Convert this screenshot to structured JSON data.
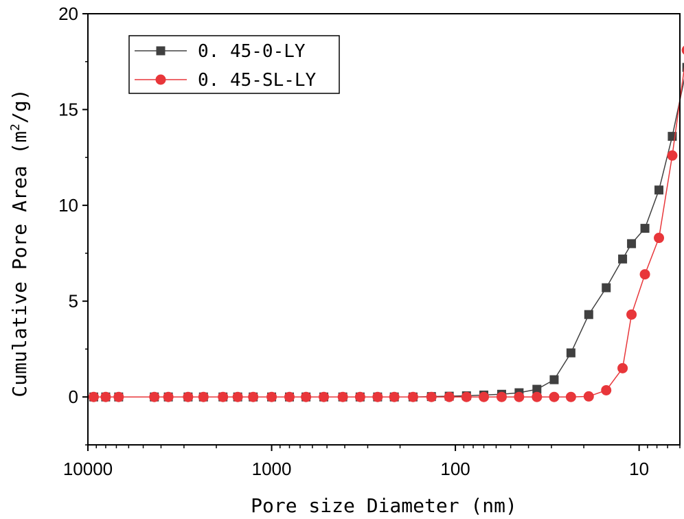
{
  "chart_data": {
    "type": "scatter",
    "title": "",
    "xlabel": "Pore size Diameter (nm)",
    "ylabel_prefix": "Cumulative Pore Area (m",
    "ylabel_sup": "2",
    "ylabel_suffix": "/g)",
    "x_scale": "log",
    "x_reversed": true,
    "xlim": [
      10000,
      6
    ],
    "ylim": [
      -2.5,
      20
    ],
    "x_ticks": [
      {
        "value": 10000,
        "label": "10000"
      },
      {
        "value": 1000,
        "label": "1000"
      },
      {
        "value": 100,
        "label": "100"
      },
      {
        "value": 10,
        "label": "10"
      }
    ],
    "y_ticks": [
      {
        "value": 0,
        "label": "0"
      },
      {
        "value": 5,
        "label": "5"
      },
      {
        "value": 10,
        "label": "10"
      },
      {
        "value": 15,
        "label": "15"
      },
      {
        "value": 20,
        "label": "20"
      }
    ],
    "legend_position": "top-left",
    "series": [
      {
        "name": "0. 45-0-LY",
        "marker": "square",
        "color": "#404040",
        "line_color": "#404040",
        "x": [
          9300,
          8000,
          6800,
          4350,
          3650,
          2850,
          2350,
          1840,
          1530,
          1260,
          1000,
          800,
          650,
          520,
          410,
          330,
          265,
          215,
          170,
          135,
          108,
          87,
          70,
          56,
          45,
          36,
          29,
          23.5,
          18.8,
          15.1,
          12.3,
          11.0,
          9.3,
          7.8,
          6.6,
          5.5
        ],
        "y": [
          0,
          0,
          0,
          0,
          0,
          0,
          0,
          0,
          0,
          0,
          0,
          0,
          0,
          0,
          0,
          0,
          0,
          0,
          0,
          0.02,
          0.04,
          0.06,
          0.1,
          0.14,
          0.22,
          0.4,
          0.9,
          2.3,
          4.3,
          5.7,
          7.2,
          8.0,
          8.8,
          10.8,
          13.6,
          17.2
        ]
      },
      {
        "name": "0. 45-SL-LY",
        "marker": "circle",
        "color": "#e8363a",
        "line_color": "#e8363a",
        "x": [
          9300,
          8000,
          6800,
          4350,
          3650,
          2850,
          2350,
          1840,
          1530,
          1260,
          1000,
          800,
          650,
          520,
          410,
          330,
          265,
          215,
          170,
          135,
          108,
          87,
          70,
          56,
          45,
          36,
          29,
          23.5,
          18.8,
          15.1,
          12.3,
          11.0,
          9.3,
          7.8,
          6.6,
          5.5
        ],
        "y": [
          0,
          0,
          0,
          0,
          0,
          0,
          0,
          0,
          0,
          0,
          0,
          0,
          0,
          0,
          0,
          0,
          0,
          0,
          0,
          0,
          0,
          0,
          0,
          0,
          0,
          0,
          0,
          0,
          0.03,
          0.35,
          1.5,
          4.3,
          6.4,
          8.3,
          12.6,
          18.1
        ]
      }
    ]
  }
}
